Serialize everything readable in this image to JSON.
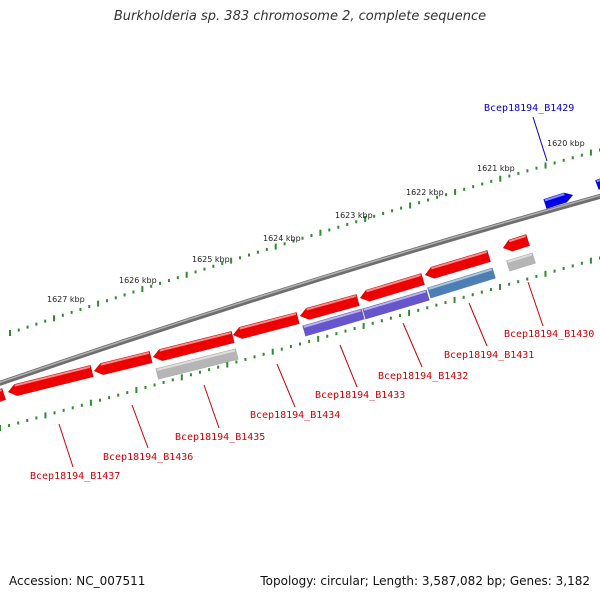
{
  "title": "Burkholderia sp. 383 chromosome 2, complete sequence",
  "footer": {
    "accession": "Accession: NC_007511",
    "summary": "Topology: circular; Length: 3,587,082 bp; Genes: 3,182"
  },
  "colors": {
    "backbone": "#8a8a8a",
    "ticks": "#2e8b2e",
    "forward_gene": "#0000ee",
    "reverse_gene": "#ee0000",
    "purple_feature": "#6655cc",
    "steel_feature": "#4d7fb5",
    "gray_feature": "#b5b5b5",
    "label_blue": "#0000cc",
    "label_red": "#cc0000"
  },
  "kbp_labels": [
    "1620 kbp",
    "1621 kbp",
    "1622 kbp",
    "1623 kbp",
    "1624 kbp",
    "1625 kbp",
    "1626 kbp",
    "1627 kbp"
  ],
  "gene_labels": [
    {
      "text": "Bcep18194_B1429",
      "color": "blue"
    },
    {
      "text": "Bcep18194_B1430",
      "color": "red"
    },
    {
      "text": "Bcep18194_B1431",
      "color": "red"
    },
    {
      "text": "Bcep18194_B1432",
      "color": "red"
    },
    {
      "text": "Bcep18194_B1433",
      "color": "red"
    },
    {
      "text": "Bcep18194_B1434",
      "color": "red"
    },
    {
      "text": "Bcep18194_B1435",
      "color": "red"
    },
    {
      "text": "Bcep18194_B1436",
      "color": "red"
    },
    {
      "text": "Bcep18194_B1437",
      "color": "red"
    }
  ]
}
